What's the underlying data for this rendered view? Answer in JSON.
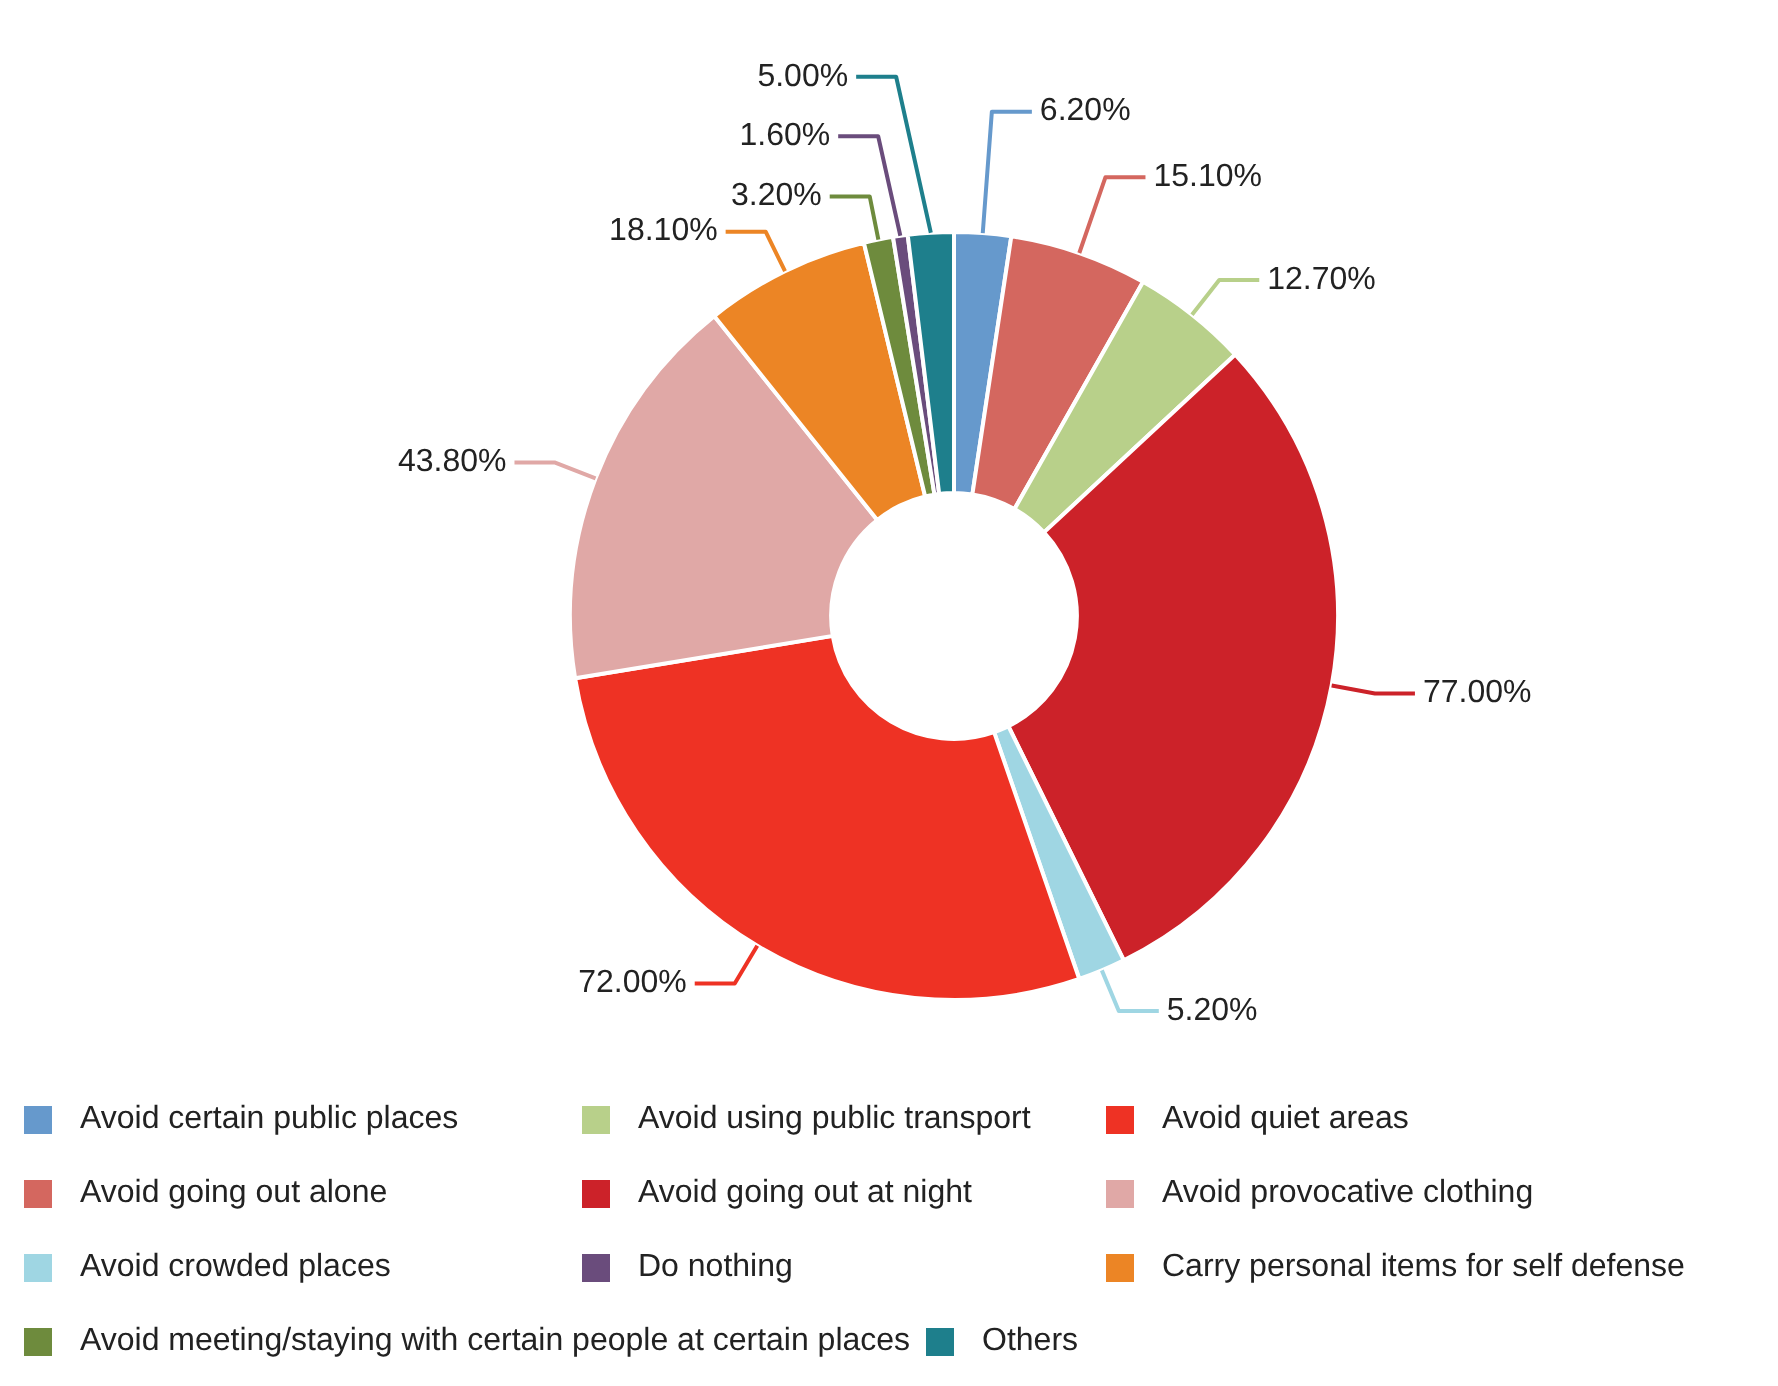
{
  "chart_data": {
    "type": "donut",
    "categories": [
      "Avoid certain public places",
      "Avoid going out alone",
      "Avoid using public transport",
      "Avoid going out at night",
      "Avoid crowded places",
      "Avoid quiet areas",
      "Avoid provocative clothing",
      "Carry personal items for self defense",
      "Avoid meeting/staying with certain people at certain places",
      "Do nothing",
      "Others"
    ],
    "values": [
      6.2,
      15.1,
      12.7,
      77,
      5.2,
      72,
      43.8,
      18.1,
      3.2,
      1.6,
      5.0
    ],
    "value_labels": [
      "6.20%",
      "15.10%",
      "12.70%",
      "77.00%",
      "5.20%",
      "72.00%",
      "43.80%",
      "18.10%",
      "3.20%",
      "1.60%",
      "5.00%"
    ],
    "colors": [
      "#6699cc",
      "#d4675f",
      "#b8d08a",
      "#cc2229",
      "#9fd6e3",
      "#ee3224",
      "#e0a8a6",
      "#ec8525",
      "#6e8b3d",
      "#6a4c7c",
      "#1e7f8c"
    ],
    "legend": "bottom"
  }
}
